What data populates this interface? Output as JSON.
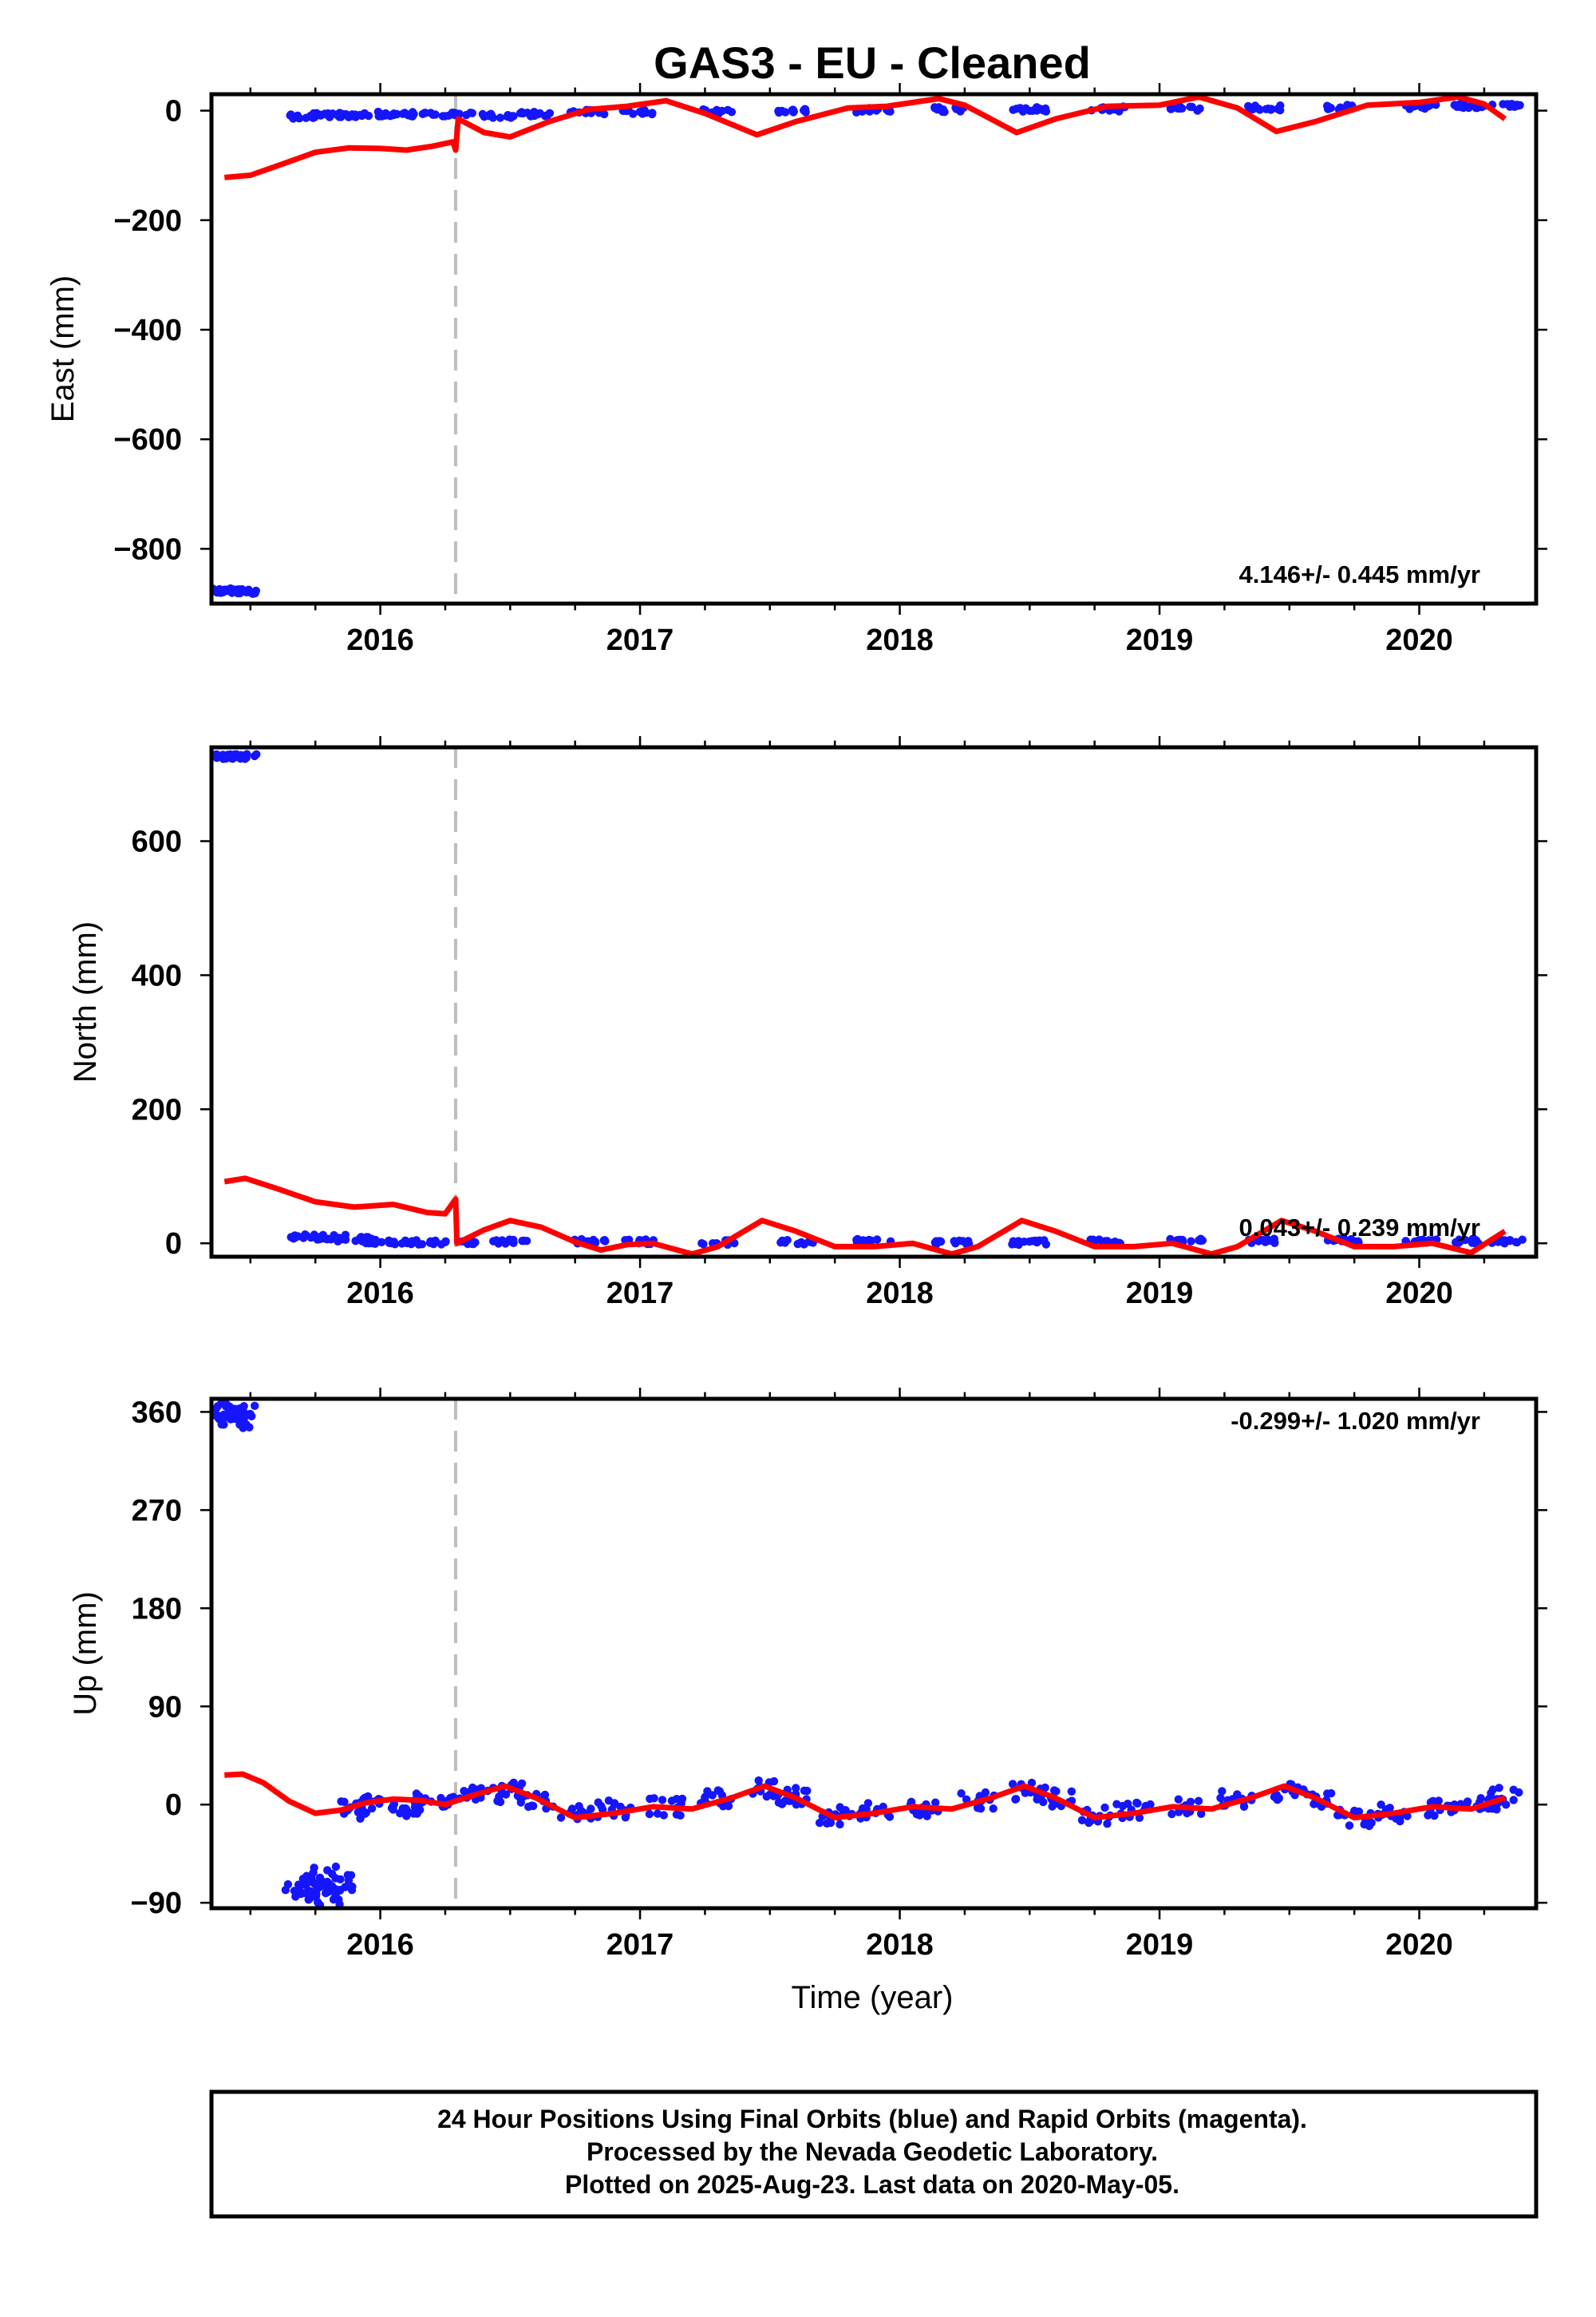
{
  "title": "GAS3  - EU - Cleaned",
  "xlabel": "Time (year)",
  "footer": {
    "line1": "24 Hour Positions Using Final Orbits (blue) and Rapid Orbits (magenta).",
    "line2": "Processed by the Nevada Geodetic Laboratory.",
    "line3": "Plotted on 2025-Aug-23. Last data on 2020-May-05."
  },
  "colors": {
    "data": "#1515ff",
    "fit": "#ff0000",
    "offset_line": "#bdbdbd"
  },
  "chart_data": [
    {
      "type": "scatter",
      "panel": "east",
      "ylabel": "East (mm)",
      "rate_text": "4.146+/- 0.445 mm/yr",
      "xlim": [
        2015.35,
        2020.45
      ],
      "ylim": [
        -900,
        30
      ],
      "xticks": [
        2016,
        2017,
        2018,
        2019,
        2020
      ],
      "yticks": [
        0,
        -200,
        -400,
        -600,
        -800
      ],
      "offset_epoch": 2016.29,
      "points": [
        [
          2015.4,
          -877
        ],
        [
          2015.43,
          -876
        ],
        [
          2015.46,
          -878
        ],
        [
          2015.72,
          -10
        ],
        [
          2015.8,
          -9
        ],
        [
          2015.9,
          -8
        ],
        [
          2016.0,
          -6
        ],
        [
          2016.15,
          -7
        ],
        [
          2016.3,
          -8
        ],
        [
          2016.45,
          -9
        ],
        [
          2016.6,
          -6
        ],
        [
          2016.8,
          -3
        ],
        [
          2017.0,
          -2
        ],
        [
          2017.3,
          -1
        ],
        [
          2017.6,
          -1
        ],
        [
          2017.9,
          1
        ],
        [
          2018.2,
          2
        ],
        [
          2018.5,
          2
        ],
        [
          2018.8,
          3
        ],
        [
          2019.1,
          4
        ],
        [
          2019.4,
          5
        ],
        [
          2019.7,
          6
        ],
        [
          2020.0,
          7
        ],
        [
          2020.2,
          9
        ],
        [
          2020.33,
          9
        ]
      ],
      "fit_line": [
        [
          2015.4,
          -122
        ],
        [
          2015.5,
          -118
        ],
        [
          2015.62,
          -98
        ],
        [
          2015.75,
          -76
        ],
        [
          2015.88,
          -68
        ],
        [
          2016.0,
          -69
        ],
        [
          2016.1,
          -72
        ],
        [
          2016.2,
          -65
        ],
        [
          2016.28,
          -57
        ],
        [
          2016.29,
          -72
        ],
        [
          2016.3,
          -15
        ],
        [
          2016.4,
          -40
        ],
        [
          2016.5,
          -48
        ],
        [
          2016.65,
          -20
        ],
        [
          2016.8,
          2
        ],
        [
          2016.95,
          8
        ],
        [
          2017.1,
          18
        ],
        [
          2017.25,
          -5
        ],
        [
          2017.45,
          -44
        ],
        [
          2017.6,
          -20
        ],
        [
          2017.8,
          5
        ],
        [
          2017.95,
          8
        ],
        [
          2018.15,
          22
        ],
        [
          2018.25,
          10
        ],
        [
          2018.45,
          -40
        ],
        [
          2018.6,
          -15
        ],
        [
          2018.8,
          8
        ],
        [
          2019.0,
          10
        ],
        [
          2019.15,
          25
        ],
        [
          2019.3,
          5
        ],
        [
          2019.45,
          -38
        ],
        [
          2019.6,
          -20
        ],
        [
          2019.8,
          10
        ],
        [
          2020.0,
          15
        ],
        [
          2020.15,
          25
        ],
        [
          2020.25,
          12
        ],
        [
          2020.33,
          -15
        ]
      ]
    },
    {
      "type": "scatter",
      "panel": "north",
      "ylabel": "North (mm)",
      "rate_text": "0.043+/- 0.239 mm/yr",
      "xlim": [
        2015.35,
        2020.45
      ],
      "ylim": [
        -20,
        740
      ],
      "xticks": [
        2016,
        2017,
        2018,
        2019,
        2020
      ],
      "yticks": [
        0,
        200,
        400,
        600
      ],
      "offset_epoch": 2016.29,
      "points": [
        [
          2015.4,
          726
        ],
        [
          2015.43,
          727
        ],
        [
          2015.46,
          726
        ],
        [
          2015.72,
          10
        ],
        [
          2015.8,
          9
        ],
        [
          2015.9,
          6
        ],
        [
          2016.0,
          2
        ],
        [
          2016.15,
          1
        ],
        [
          2016.3,
          1
        ],
        [
          2016.5,
          2
        ],
        [
          2016.8,
          3
        ],
        [
          2017.0,
          2
        ],
        [
          2017.3,
          1
        ],
        [
          2017.6,
          2
        ],
        [
          2017.9,
          3
        ],
        [
          2018.2,
          1
        ],
        [
          2018.5,
          1
        ],
        [
          2018.8,
          2
        ],
        [
          2019.1,
          3
        ],
        [
          2019.4,
          4
        ],
        [
          2019.7,
          4
        ],
        [
          2020.0,
          3
        ],
        [
          2020.2,
          3
        ],
        [
          2020.33,
          2
        ]
      ],
      "fit_line": [
        [
          2015.4,
          92
        ],
        [
          2015.48,
          97
        ],
        [
          2015.6,
          82
        ],
        [
          2015.75,
          62
        ],
        [
          2015.9,
          54
        ],
        [
          2016.05,
          58
        ],
        [
          2016.18,
          46
        ],
        [
          2016.25,
          44
        ],
        [
          2016.29,
          66
        ],
        [
          2016.295,
          0
        ],
        [
          2016.4,
          20
        ],
        [
          2016.5,
          34
        ],
        [
          2016.62,
          24
        ],
        [
          2016.75,
          2
        ],
        [
          2016.85,
          -10
        ],
        [
          2016.95,
          -2
        ],
        [
          2017.05,
          0
        ],
        [
          2017.2,
          -16
        ],
        [
          2017.3,
          -5
        ],
        [
          2017.47,
          34
        ],
        [
          2017.6,
          18
        ],
        [
          2017.75,
          -5
        ],
        [
          2017.9,
          -5
        ],
        [
          2018.05,
          0
        ],
        [
          2018.2,
          -16
        ],
        [
          2018.3,
          -5
        ],
        [
          2018.47,
          34
        ],
        [
          2018.6,
          18
        ],
        [
          2018.75,
          -5
        ],
        [
          2018.9,
          -5
        ],
        [
          2019.05,
          0
        ],
        [
          2019.2,
          -16
        ],
        [
          2019.3,
          -5
        ],
        [
          2019.47,
          34
        ],
        [
          2019.6,
          18
        ],
        [
          2019.75,
          -5
        ],
        [
          2019.9,
          -5
        ],
        [
          2020.05,
          0
        ],
        [
          2020.2,
          -14
        ],
        [
          2020.33,
          18
        ]
      ]
    },
    {
      "type": "scatter",
      "panel": "up",
      "ylabel": "Up (mm)",
      "rate_text": "-0.299+/- 1.020 mm/yr",
      "xlim": [
        2015.35,
        2020.45
      ],
      "ylim": [
        -95,
        372
      ],
      "xticks": [
        2016,
        2017,
        2018,
        2019,
        2020
      ],
      "yticks": [
        360,
        270,
        180,
        90,
        0,
        -90
      ],
      "offset_epoch": 2016.29,
      "points": [
        [
          2015.4,
          356
        ],
        [
          2015.42,
          360
        ],
        [
          2015.44,
          353
        ],
        [
          2015.46,
          358
        ],
        [
          2015.7,
          -80
        ],
        [
          2015.74,
          -75
        ],
        [
          2015.77,
          -65
        ],
        [
          2015.8,
          -85
        ],
        [
          2015.83,
          -72
        ],
        [
          2015.9,
          -5
        ],
        [
          2016.0,
          0
        ],
        [
          2016.1,
          -3
        ],
        [
          2016.2,
          2
        ],
        [
          2016.3,
          5
        ],
        [
          2016.4,
          8
        ],
        [
          2016.5,
          12
        ],
        [
          2016.6,
          4
        ],
        [
          2016.75,
          -8
        ],
        [
          2016.9,
          -4
        ],
        [
          2017.1,
          -2
        ],
        [
          2017.3,
          6
        ],
        [
          2017.5,
          14
        ],
        [
          2017.6,
          8
        ],
        [
          2017.75,
          -10
        ],
        [
          2017.9,
          -6
        ],
        [
          2018.1,
          -3
        ],
        [
          2018.3,
          4
        ],
        [
          2018.5,
          12
        ],
        [
          2018.6,
          6
        ],
        [
          2018.75,
          -10
        ],
        [
          2018.9,
          -5
        ],
        [
          2019.1,
          -2
        ],
        [
          2019.3,
          5
        ],
        [
          2019.5,
          12
        ],
        [
          2019.6,
          6
        ],
        [
          2019.75,
          -12
        ],
        [
          2019.9,
          -8
        ],
        [
          2020.1,
          -4
        ],
        [
          2020.25,
          2
        ],
        [
          2020.33,
          8
        ]
      ],
      "fit_line": [
        [
          2015.4,
          27
        ],
        [
          2015.47,
          28
        ],
        [
          2015.55,
          20
        ],
        [
          2015.65,
          3
        ],
        [
          2015.75,
          -8
        ],
        [
          2015.85,
          -5
        ],
        [
          2015.95,
          2
        ],
        [
          2016.05,
          5
        ],
        [
          2016.15,
          4
        ],
        [
          2016.25,
          0
        ],
        [
          2016.35,
          8
        ],
        [
          2016.48,
          17
        ],
        [
          2016.6,
          6
        ],
        [
          2016.75,
          -12
        ],
        [
          2016.9,
          -8
        ],
        [
          2017.05,
          -2
        ],
        [
          2017.2,
          -4
        ],
        [
          2017.35,
          6
        ],
        [
          2017.48,
          17
        ],
        [
          2017.6,
          6
        ],
        [
          2017.75,
          -12
        ],
        [
          2017.9,
          -8
        ],
        [
          2018.05,
          -2
        ],
        [
          2018.2,
          -4
        ],
        [
          2018.35,
          6
        ],
        [
          2018.48,
          17
        ],
        [
          2018.6,
          6
        ],
        [
          2018.75,
          -12
        ],
        [
          2018.9,
          -8
        ],
        [
          2019.05,
          -2
        ],
        [
          2019.2,
          -4
        ],
        [
          2019.35,
          6
        ],
        [
          2019.48,
          17
        ],
        [
          2019.6,
          6
        ],
        [
          2019.75,
          -12
        ],
        [
          2019.9,
          -8
        ],
        [
          2020.05,
          -2
        ],
        [
          2020.2,
          -4
        ],
        [
          2020.33,
          6
        ]
      ]
    }
  ]
}
